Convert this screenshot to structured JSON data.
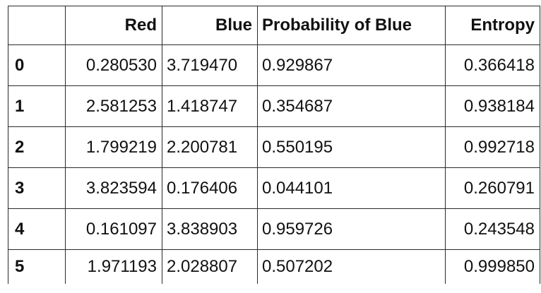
{
  "table": {
    "columns": {
      "index": "",
      "red": "Red",
      "blue": "Blue",
      "probability_of_blue": "Probability of Blue",
      "entropy": "Entropy"
    },
    "rows": [
      {
        "index": "0",
        "red": "0.280530",
        "blue": "3.719470",
        "probability_of_blue": "0.929867",
        "entropy": "0.366418"
      },
      {
        "index": "1",
        "red": "2.581253",
        "blue": "1.418747",
        "probability_of_blue": "0.354687",
        "entropy": "0.938184"
      },
      {
        "index": "2",
        "red": "1.799219",
        "blue": "2.200781",
        "probability_of_blue": "0.550195",
        "entropy": "0.992718"
      },
      {
        "index": "3",
        "red": "3.823594",
        "blue": "0.176406",
        "probability_of_blue": "0.044101",
        "entropy": "0.260791"
      },
      {
        "index": "4",
        "red": "0.161097",
        "blue": "3.838903",
        "probability_of_blue": "0.959726",
        "entropy": "0.243548"
      },
      {
        "index": "5",
        "red": "1.971193",
        "blue": "2.028807",
        "probability_of_blue": "0.507202",
        "entropy": "0.999850"
      }
    ]
  }
}
